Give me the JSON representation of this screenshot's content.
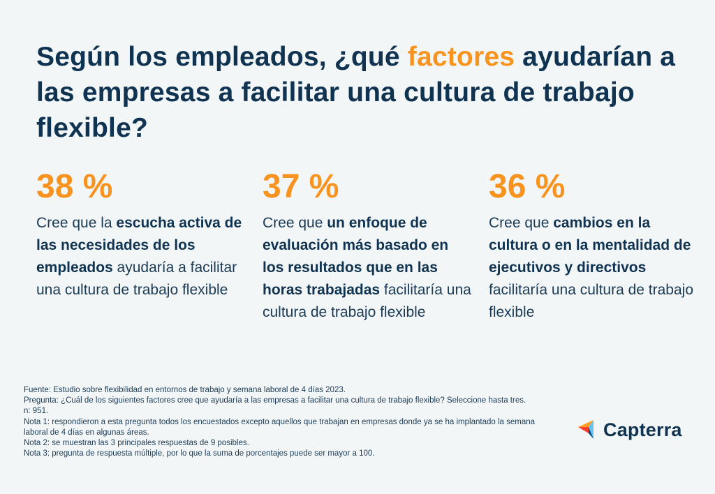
{
  "title": {
    "part1": "Según los empleados, ¿qué ",
    "highlight": "factores",
    "part2": " ayudarían a las empresas a facilitar una cultura de trabajo flexible?"
  },
  "stats": [
    {
      "pct": "38 %",
      "pre": "Cree que la ",
      "bold": "escucha activa de las necesidades de los empleados",
      "post": " ayudaría a facilitar una cultura de trabajo flexible"
    },
    {
      "pct": "37 %",
      "pre": "Cree que ",
      "bold": "un enfoque de evaluación más basado en los resultados que en las horas trabajadas",
      "post": " facilitaría una cultura de trabajo flexible"
    },
    {
      "pct": "36 %",
      "pre": "Cree que ",
      "bold": "cambios en la cultura o en la mentalidad de ejecutivos y directivos",
      "post": " facilitaría una cultura de trabajo flexible"
    }
  ],
  "notes": {
    "source": "Fuente: Estudio sobre flexibilidad en entornos de trabajo y semana laboral de 4 días 2023.",
    "question": "Pregunta: ¿Cuál de los siguientes factores cree que ayudaría a las empresas a facilitar una cultura de trabajo flexible? Seleccione hasta tres.",
    "n": "n: 951.",
    "note1": "Nota 1: respondieron a esta pregunta todos los encuestados excepto aquellos que trabajan en empresas donde ya se ha implantado la semana laboral de 4 días en algunas áreas.",
    "note2": "Nota 2: se muestran las 3 principales respuestas de 9 posibles.",
    "note3": "Nota 3: pregunta de respuesta múltiple, por lo que la suma de porcentajes puede ser mayor a 100."
  },
  "logo": {
    "text": "Capterra",
    "icon": "capterra-arrow-icon",
    "colors": {
      "orange": "#ff9d28",
      "blue": "#68c5ed",
      "navy": "#044d80",
      "red": "#ff3d2e"
    }
  }
}
